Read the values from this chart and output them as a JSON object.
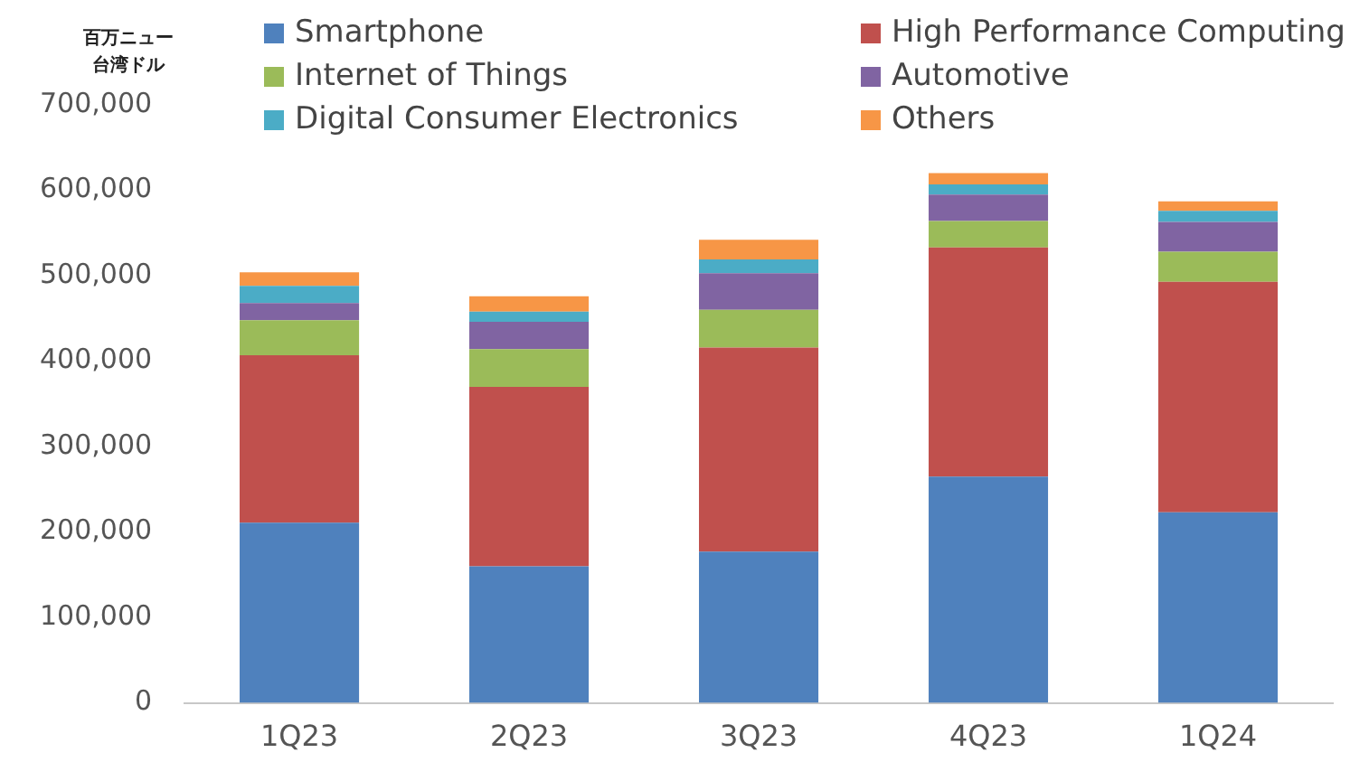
{
  "chart_data": {
    "type": "bar",
    "stacked": true,
    "ylabel": "百万ニュー台湾ドル",
    "categories": [
      "1Q23",
      "2Q23",
      "3Q23",
      "4Q23",
      "1Q24"
    ],
    "series": [
      {
        "name": "Smartphone",
        "color": "#4f81bd",
        "values": [
          211000,
          160000,
          177000,
          265000,
          223000
        ]
      },
      {
        "name": "High Performance Computing",
        "color": "#c0504d",
        "values": [
          196000,
          210000,
          239000,
          268000,
          270000
        ]
      },
      {
        "name": "Internet of Things",
        "color": "#9bbb59",
        "values": [
          41000,
          44000,
          44000,
          31000,
          35000
        ]
      },
      {
        "name": "Automotive",
        "color": "#8064a2",
        "values": [
          20000,
          32000,
          43000,
          31000,
          35000
        ]
      },
      {
        "name": "Digital Consumer Electronics",
        "color": "#4bacc6",
        "values": [
          20000,
          12000,
          16000,
          12000,
          13000
        ]
      },
      {
        "name": "Others",
        "color": "#f79646",
        "values": [
          16000,
          18000,
          23000,
          13000,
          11000
        ]
      }
    ],
    "ylim": [
      0,
      700000
    ],
    "yticks": [
      0,
      {
        "value": 100000,
        "label": "100,000"
      },
      {
        "value": 200000,
        "label": "200,000"
      },
      {
        "value": 300000,
        "label": "300,000"
      },
      {
        "value": 400000,
        "label": "400,000"
      },
      {
        "value": 500000,
        "label": "500,000"
      },
      {
        "value": 600000,
        "label": "600,000"
      },
      {
        "value": 700000,
        "label": "700,000"
      }
    ],
    "grid": false,
    "legend": "top"
  }
}
